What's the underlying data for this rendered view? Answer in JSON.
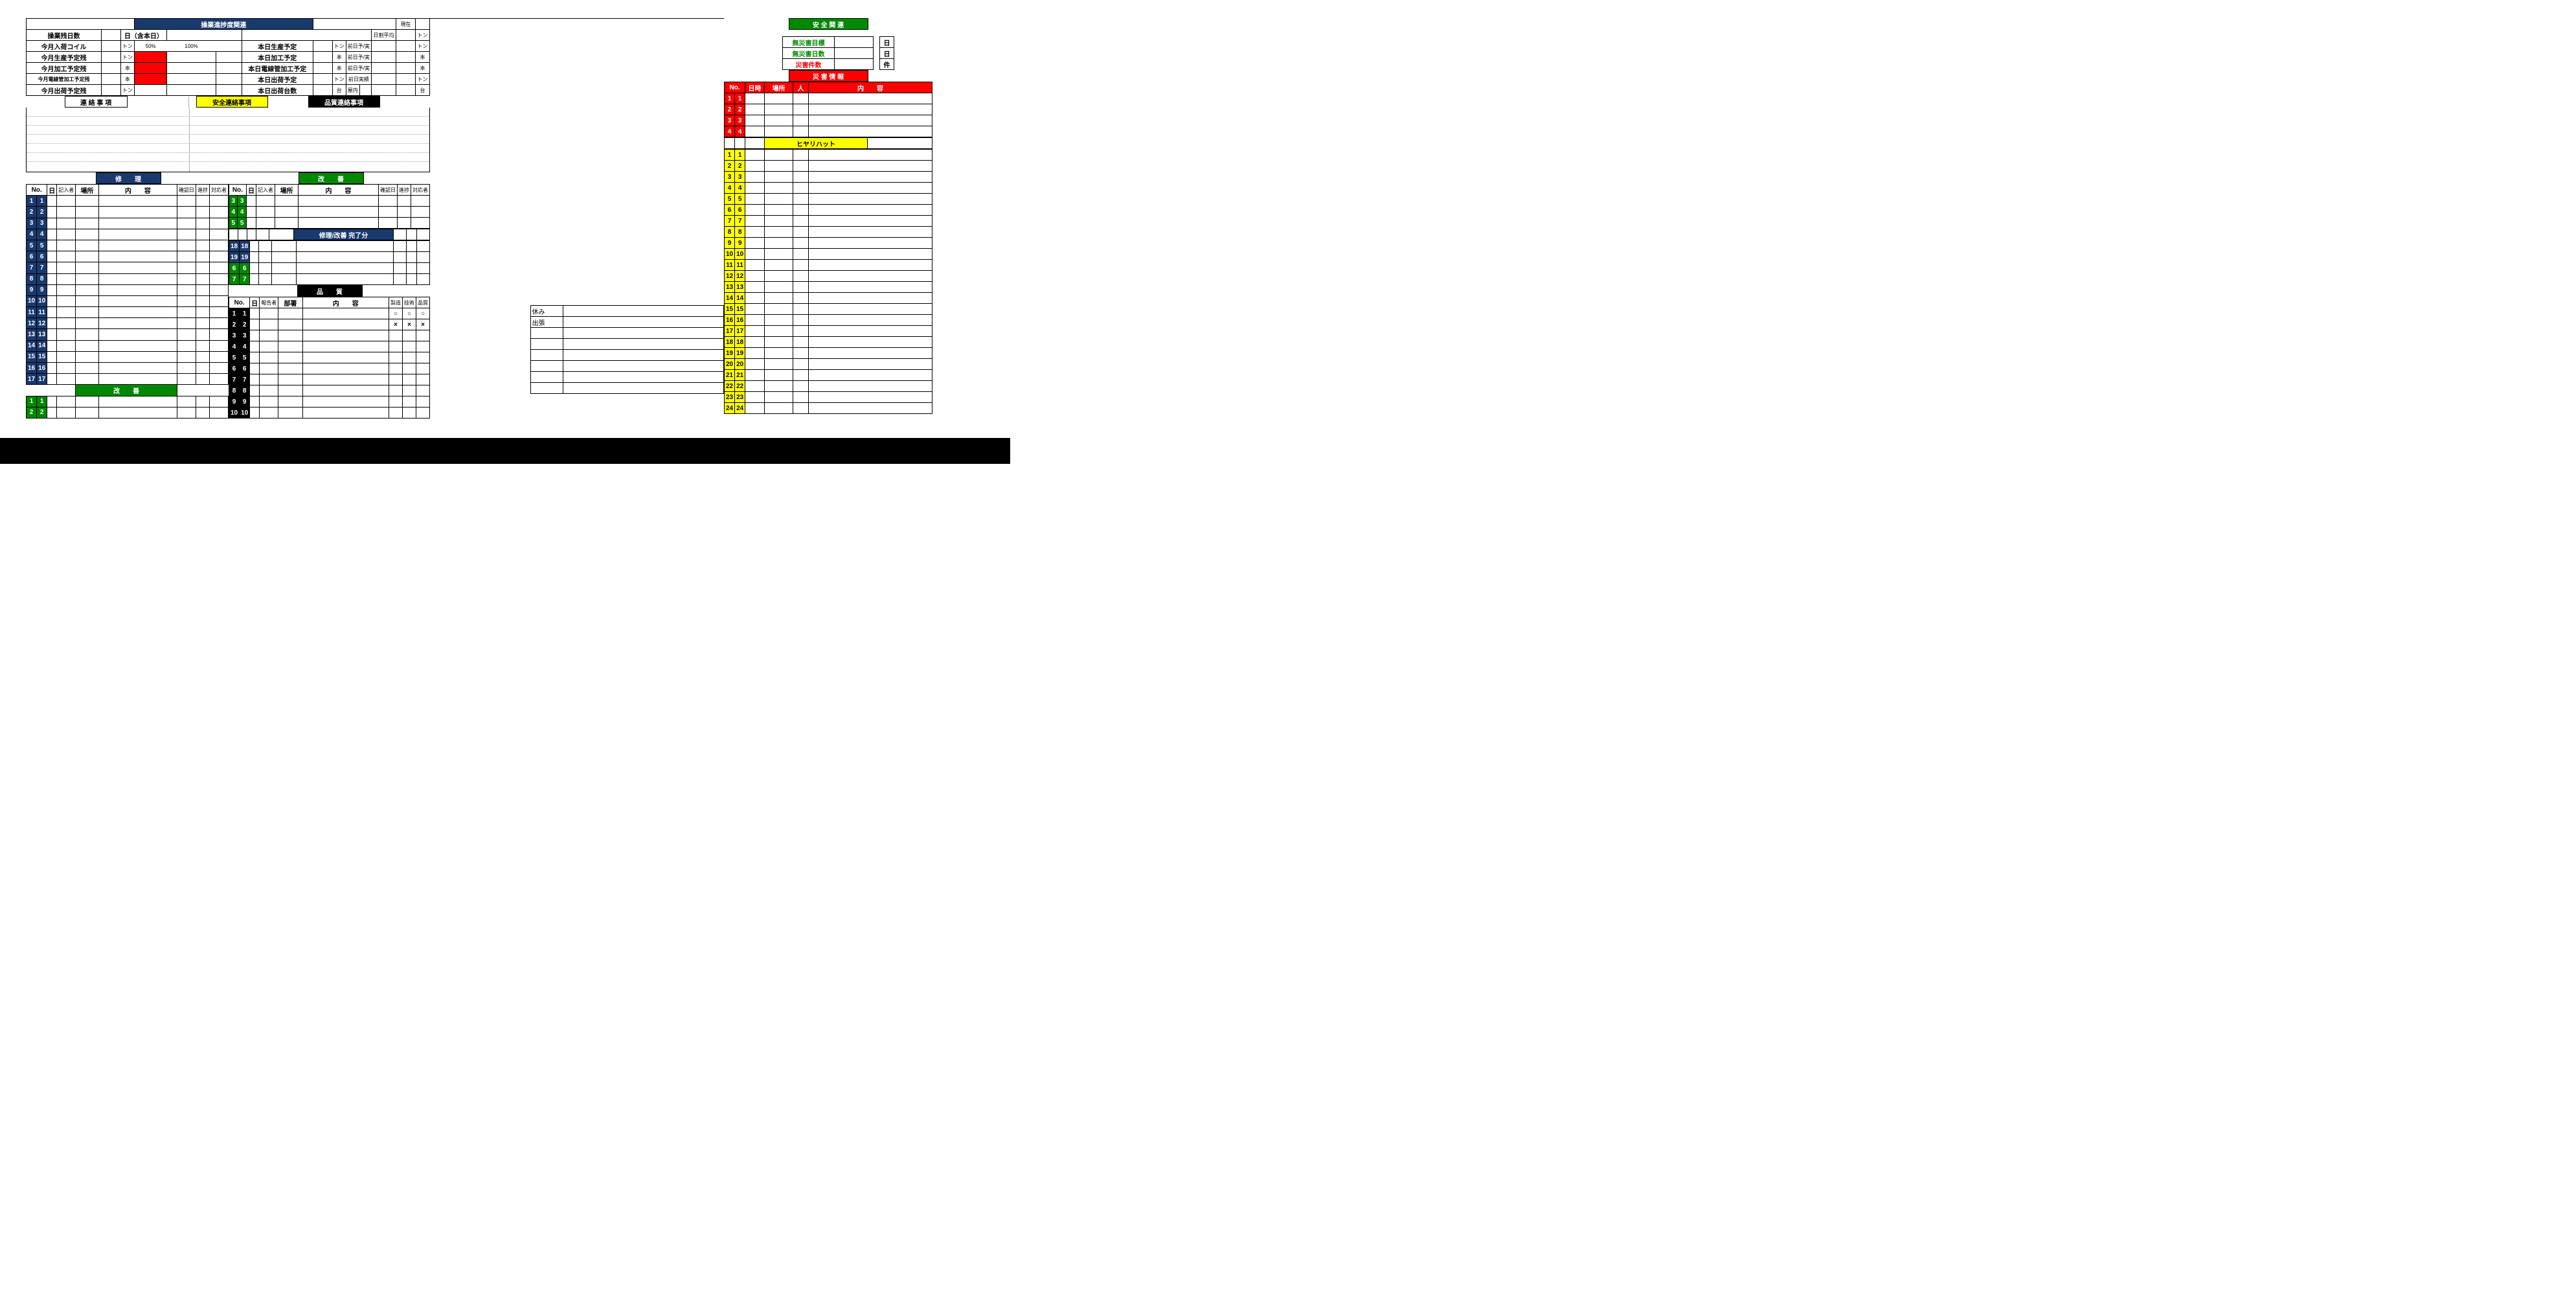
{
  "colors": {
    "navy": "#1a3a6e",
    "green": "#008800",
    "black": "#000000",
    "yellow": "#ffff00",
    "red": "#ff0000",
    "white": "#ffffff",
    "grid": "#000000",
    "dotted": "#aaaaaa"
  },
  "ops_header": "操業進捗度関連",
  "ops_top": {
    "row1_left": "操業残日数",
    "row1_mid": "日（含本日）",
    "row1_r1": "現在",
    "rows": [
      {
        "l": "今月入荷コイル",
        "u": "トン",
        "r": "本日生産予定",
        "ru": "トン",
        "rr1": "日割平均",
        "rr2": "トン",
        "bar50": false
      },
      {
        "l": "今月生産予定残",
        "u": "トン",
        "r": "本日加工予定",
        "ru": "本",
        "rr1": "前日予/実",
        "rr2": "トン",
        "bar50": true
      },
      {
        "l": "今月加工予定残",
        "u": "本",
        "r": "本日電線管加工予定",
        "ru": "本",
        "rr1": "前日予/実",
        "rr2": "本",
        "bar50": true,
        "bar_extra": true
      },
      {
        "l": "今月電線管加工予定残",
        "u": "本",
        "r": "本日出荷予定",
        "ru": "トン",
        "rr1": "前日予/実",
        "rr2": "本",
        "bar50": true
      },
      {
        "l": "今月出荷予定残",
        "u": "トン",
        "r": "本日出荷台数",
        "ru": "台",
        "rr1": "前日実績",
        "rr2": "トン",
        "bar50": false,
        "rr1b": "屋内",
        "rr2b": "台"
      }
    ],
    "pct50": "50%",
    "pct100": "100%"
  },
  "contact_headers": {
    "a": "連 絡 事 項",
    "b": "安全連絡事項",
    "c": "品質連絡事項"
  },
  "repair": {
    "title": "修　　理",
    "cols": [
      "No.",
      "",
      "日",
      "記入者",
      "場所",
      "内　　容",
      "確認日",
      "進捗",
      "対応者"
    ],
    "rows": 17
  },
  "kaizen_left": {
    "title": "改　　善",
    "rows": 2
  },
  "kaizen_right": {
    "title": "改　　善",
    "start_nums": [
      3,
      4,
      5
    ],
    "done_title": "修理/改善 完了分",
    "done_nums_navy": [
      18,
      19
    ],
    "done_nums_green": [
      6,
      7
    ]
  },
  "quality": {
    "title": "品　　質",
    "cols": [
      "No.",
      "",
      "日",
      "報告者",
      "部署",
      "内　　容",
      "製造",
      "技術",
      "品質"
    ],
    "rows": 10,
    "marks": {
      "1": "○",
      "2": "×"
    }
  },
  "safety": {
    "title": "安 全 関 連",
    "targets": [
      {
        "l": "無災害目標",
        "u": "日",
        "cls": "txt-green"
      },
      {
        "l": "無災害日数",
        "u": "日",
        "cls": "txt-green"
      },
      {
        "l": "災害件数",
        "u": "件",
        "cls": "txt-red"
      }
    ],
    "disaster_title": "災 害 情 報",
    "disaster_cols": [
      "No.",
      "",
      "日時",
      "場所",
      "人",
      "内　　容"
    ],
    "disaster_rows": 4,
    "hiyari_title": "ヒヤリハット",
    "hiyari_rows": 24
  },
  "mid_notes": {
    "a": "休み",
    "b": "出張"
  }
}
